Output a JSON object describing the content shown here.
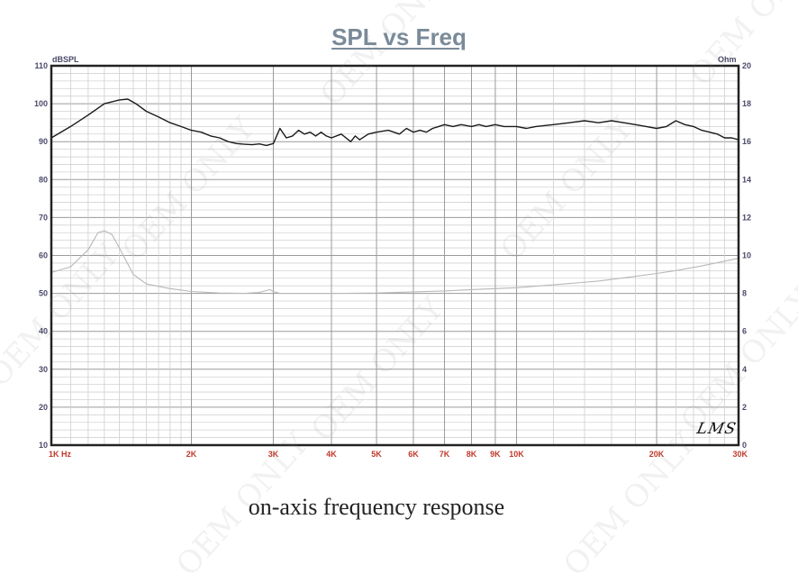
{
  "chart_data": {
    "type": "line",
    "title": "SPL vs Freq",
    "caption": "on-axis frequency response",
    "y_left_unit": "dBSPL",
    "y_right_unit": "Ohm",
    "x_scale": "log",
    "xlim": [
      1000,
      30000
    ],
    "ylim_left": [
      10,
      110
    ],
    "ylim_right": [
      0,
      20
    ],
    "grid": true,
    "signature": "LMS",
    "watermark": "OEM ONLY",
    "x_ticks": [
      {
        "value": 1000,
        "label": "1K  Hz"
      },
      {
        "value": 2000,
        "label": "2K"
      },
      {
        "value": 3000,
        "label": "3K"
      },
      {
        "value": 4000,
        "label": "4K"
      },
      {
        "value": 5000,
        "label": "5K"
      },
      {
        "value": 6000,
        "label": "6K"
      },
      {
        "value": 7000,
        "label": "7K"
      },
      {
        "value": 8000,
        "label": "8K"
      },
      {
        "value": 9000,
        "label": "9K"
      },
      {
        "value": 10000,
        "label": "10K"
      },
      {
        "value": 20000,
        "label": "20K"
      },
      {
        "value": 30000,
        "label": "30K"
      }
    ],
    "y_left_ticks": [
      10,
      20,
      30,
      40,
      50,
      60,
      70,
      80,
      90,
      100,
      110
    ],
    "y_right_ticks": [
      0,
      2,
      4,
      6,
      8,
      10,
      12,
      14,
      16,
      18,
      20
    ],
    "series": [
      {
        "axis": "left",
        "color": "#1a1a1a",
        "x": [
          1000,
          1100,
          1200,
          1300,
          1400,
          1460,
          1520,
          1600,
          1700,
          1800,
          1900,
          2000,
          2100,
          2200,
          2300,
          2400,
          2500,
          2600,
          2700,
          2800,
          2900,
          3000,
          3100,
          3200,
          3300,
          3400,
          3500,
          3600,
          3700,
          3800,
          3900,
          4000,
          4200,
          4400,
          4500,
          4600,
          4800,
          5000,
          5300,
          5600,
          5800,
          6000,
          6200,
          6400,
          6600,
          6800,
          7000,
          7300,
          7600,
          8000,
          8300,
          8600,
          9000,
          9400,
          10000,
          10500,
          11000,
          12000,
          13000,
          14000,
          15000,
          16000,
          17000,
          18000,
          19000,
          20000,
          21000,
          22000,
          23000,
          24000,
          25000,
          26000,
          27000,
          28000,
          29000,
          30000
        ],
        "y": [
          91,
          94,
          97,
          100,
          101,
          101.2,
          100,
          98,
          96.5,
          95,
          94,
          93,
          92.5,
          91.5,
          91,
          90,
          89.5,
          89.3,
          89.2,
          89.4,
          89,
          89.5,
          93.5,
          91,
          91.5,
          93,
          92,
          92.5,
          91.5,
          92.5,
          91.5,
          91,
          92,
          90,
          91.5,
          90.5,
          92,
          92.5,
          93,
          92,
          93.5,
          92.5,
          93,
          92.5,
          93.5,
          94,
          94.5,
          94,
          94.5,
          94,
          94.5,
          94,
          94.5,
          94,
          94,
          93.5,
          94,
          94.5,
          95,
          95.5,
          95,
          95.5,
          95,
          94.5,
          94,
          93.5,
          94,
          95.5,
          94.5,
          94,
          93,
          92.5,
          92,
          91,
          91,
          90.5
        ]
      },
      {
        "axis": "right",
        "color": "#b8b8b8",
        "x": [
          1000,
          1100,
          1200,
          1260,
          1300,
          1350,
          1400,
          1500,
          1600,
          1800,
          2000,
          2300,
          2600,
          2800,
          2950,
          3000,
          3100,
          3500,
          4000,
          5000,
          6000,
          7000,
          8000,
          10000,
          12000,
          15000,
          18000,
          20000,
          22000,
          25000,
          30000
        ],
        "y": [
          9.1,
          9.4,
          10.3,
          11.2,
          11.3,
          11.1,
          10.4,
          9.0,
          8.5,
          8.25,
          8.1,
          8.02,
          8.0,
          8.05,
          8.2,
          8.1,
          8.0,
          8.0,
          8.0,
          8.02,
          8.08,
          8.13,
          8.2,
          8.3,
          8.45,
          8.65,
          8.9,
          9.05,
          9.2,
          9.45,
          9.85
        ]
      }
    ]
  }
}
